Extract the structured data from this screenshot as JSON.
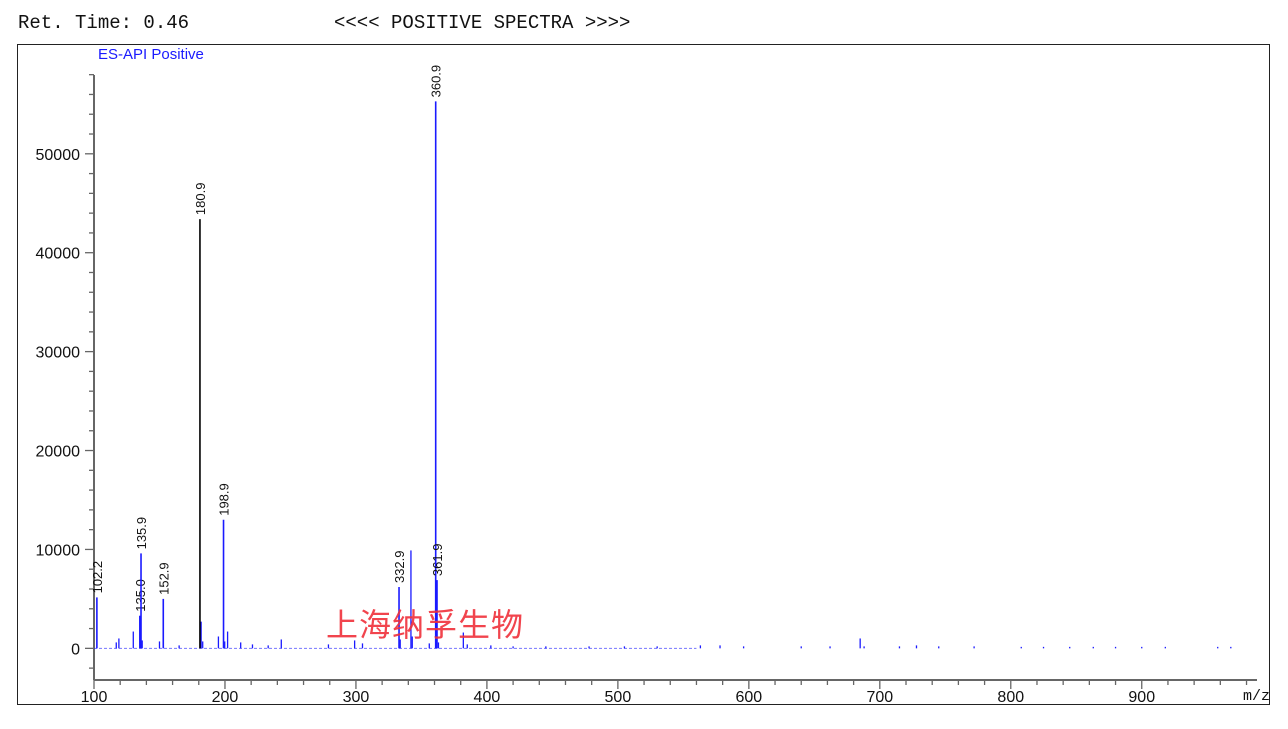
{
  "header": {
    "ret_time": "Ret. Time: 0.46",
    "mode": "<<<< POSITIVE SPECTRA >>>>"
  },
  "watermark": "上海纳孚生物",
  "chart_data": {
    "type": "bar",
    "title": "ES-API Positive",
    "xlabel": "m/z",
    "ylabel": "",
    "xlim": [
      100,
      988
    ],
    "ylim": [
      -3200,
      61000
    ],
    "x_ticks": [
      100,
      200,
      300,
      400,
      500,
      600,
      700,
      800,
      900
    ],
    "y_ticks": [
      0,
      10000,
      20000,
      30000,
      40000,
      50000
    ],
    "grid": false,
    "colors": {
      "series": "#1a1aff",
      "labels": "#111111",
      "title": "#1a1aff",
      "major_peak": "#000000"
    },
    "labeled_peaks": [
      {
        "mz": 102.2,
        "intensity": 5150,
        "label": "102.2"
      },
      {
        "mz": 135.0,
        "intensity": 3300,
        "label": "135.0"
      },
      {
        "mz": 135.9,
        "intensity": 9600,
        "label": "135.9"
      },
      {
        "mz": 152.9,
        "intensity": 5000,
        "label": "152.9"
      },
      {
        "mz": 180.9,
        "intensity": 43400,
        "label": "180.9"
      },
      {
        "mz": 198.9,
        "intensity": 13000,
        "label": "198.9"
      },
      {
        "mz": 332.9,
        "intensity": 6200,
        "label": "332.9"
      },
      {
        "mz": 360.9,
        "intensity": 55300,
        "label": "360.9"
      },
      {
        "mz": 361.9,
        "intensity": 6900,
        "label": "361.9"
      }
    ],
    "peaks": [
      {
        "mz": 117,
        "intensity": 600
      },
      {
        "mz": 119,
        "intensity": 1000
      },
      {
        "mz": 130,
        "intensity": 1700
      },
      {
        "mz": 136.8,
        "intensity": 800
      },
      {
        "mz": 150,
        "intensity": 700
      },
      {
        "mz": 165,
        "intensity": 300
      },
      {
        "mz": 181.8,
        "intensity": 2700
      },
      {
        "mz": 183,
        "intensity": 700
      },
      {
        "mz": 195,
        "intensity": 1200
      },
      {
        "mz": 199.8,
        "intensity": 700
      },
      {
        "mz": 202,
        "intensity": 1700
      },
      {
        "mz": 212,
        "intensity": 600
      },
      {
        "mz": 221,
        "intensity": 400
      },
      {
        "mz": 233,
        "intensity": 300
      },
      {
        "mz": 243,
        "intensity": 900
      },
      {
        "mz": 279,
        "intensity": 400
      },
      {
        "mz": 299,
        "intensity": 800
      },
      {
        "mz": 305,
        "intensity": 500
      },
      {
        "mz": 333.8,
        "intensity": 900
      },
      {
        "mz": 342,
        "intensity": 9900
      },
      {
        "mz": 343,
        "intensity": 1200
      },
      {
        "mz": 356,
        "intensity": 500
      },
      {
        "mz": 363,
        "intensity": 600
      },
      {
        "mz": 382,
        "intensity": 1600
      },
      {
        "mz": 385,
        "intensity": 400
      },
      {
        "mz": 403,
        "intensity": 300
      },
      {
        "mz": 420,
        "intensity": 200
      },
      {
        "mz": 445,
        "intensity": 200
      },
      {
        "mz": 478,
        "intensity": 200
      },
      {
        "mz": 505,
        "intensity": 200
      },
      {
        "mz": 530,
        "intensity": 200
      },
      {
        "mz": 563,
        "intensity": 300
      },
      {
        "mz": 578,
        "intensity": 300
      },
      {
        "mz": 596,
        "intensity": 200
      },
      {
        "mz": 640,
        "intensity": 200
      },
      {
        "mz": 662,
        "intensity": 200
      },
      {
        "mz": 685,
        "intensity": 1000
      },
      {
        "mz": 688,
        "intensity": 200
      },
      {
        "mz": 715,
        "intensity": 200
      },
      {
        "mz": 728,
        "intensity": 300
      },
      {
        "mz": 745,
        "intensity": 200
      },
      {
        "mz": 772,
        "intensity": 200
      },
      {
        "mz": 808,
        "intensity": 150
      },
      {
        "mz": 825,
        "intensity": 150
      },
      {
        "mz": 845,
        "intensity": 150
      },
      {
        "mz": 863,
        "intensity": 150
      },
      {
        "mz": 880,
        "intensity": 150
      },
      {
        "mz": 900,
        "intensity": 150
      },
      {
        "mz": 918,
        "intensity": 150
      },
      {
        "mz": 958,
        "intensity": 150
      },
      {
        "mz": 968,
        "intensity": 150
      }
    ]
  }
}
